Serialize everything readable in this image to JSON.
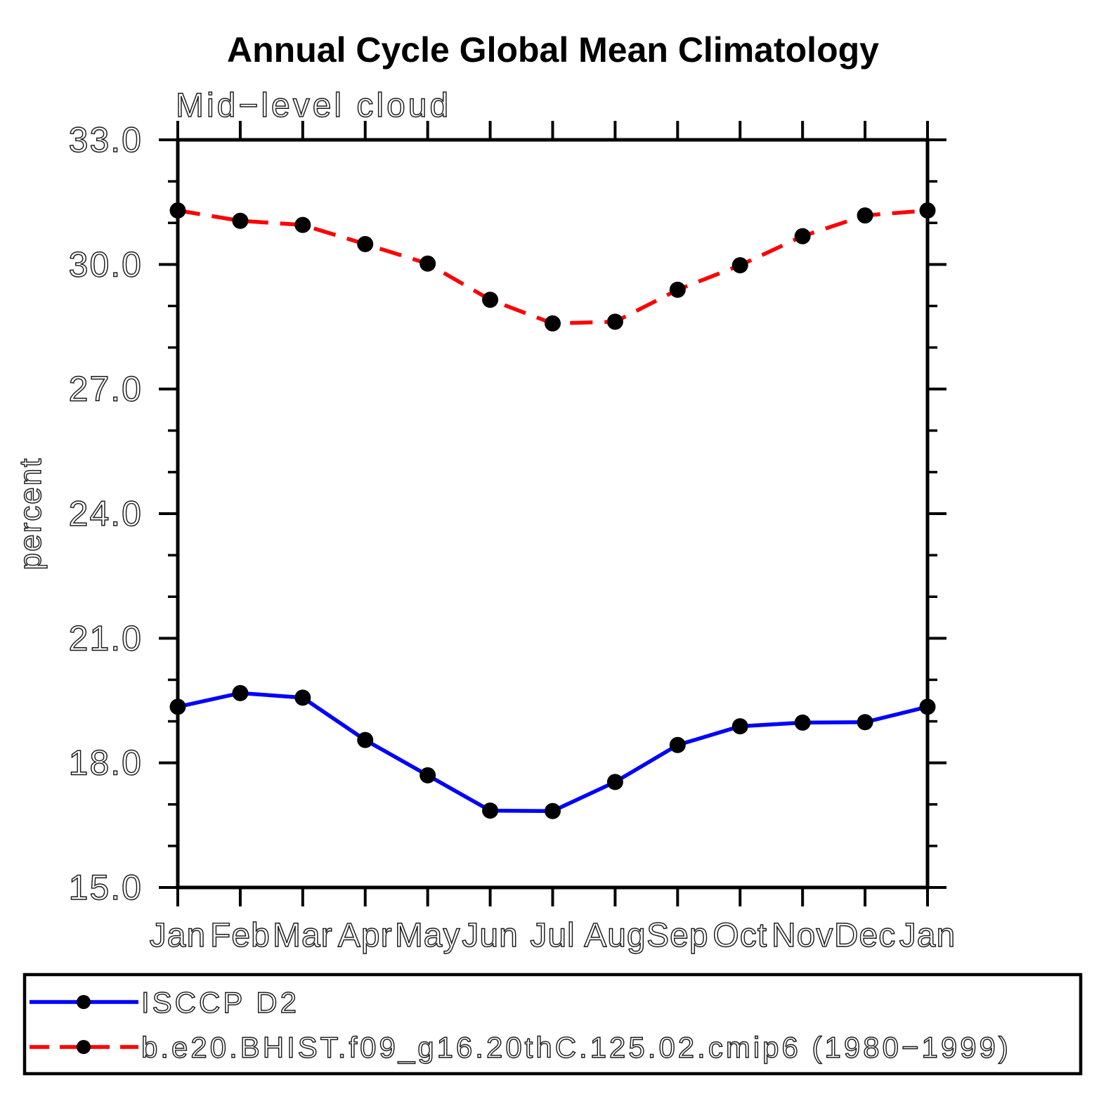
{
  "title": "Annual Cycle Global Mean Climatology",
  "chart_data": {
    "type": "line",
    "title": "Annual Cycle Global Mean Climatology",
    "subtitle": "Mid−level cloud",
    "xlabel": "",
    "ylabel": "percent",
    "ylim": [
      15.0,
      33.0
    ],
    "ytick_labels": [
      "33.0",
      "30.0",
      "27.0",
      "24.0",
      "21.0",
      "18.0",
      "15.0"
    ],
    "ytick_values": [
      33.0,
      30.0,
      27.0,
      24.0,
      21.0,
      18.0,
      15.0
    ],
    "ytick_minor_step": 1.0,
    "categories": [
      "Jan",
      "Feb",
      "Mar",
      "Apr",
      "May",
      "Jun",
      "Jul",
      "Aug",
      "Sep",
      "Oct",
      "Nov",
      "Dec",
      "Jan"
    ],
    "grid": false,
    "legend_position": "bottom",
    "axis_color": "#000000",
    "marker_color": "#000000",
    "series": [
      {
        "name": "ISCCP D2",
        "color": "#0000ff",
        "line_style": "solid",
        "marker": "filled-circle",
        "values": [
          19.35,
          19.68,
          19.57,
          18.55,
          17.7,
          16.85,
          16.84,
          17.54,
          18.43,
          18.88,
          18.97,
          18.98,
          19.35
        ]
      },
      {
        "name": "b.e20.BHIST.f09_g16.20thC.125.02.cmip6 (1980−1999)",
        "color": "#ff0000",
        "line_style": "dashed",
        "marker": "filled-circle",
        "values": [
          31.3,
          31.05,
          30.95,
          30.49,
          30.02,
          29.15,
          28.58,
          28.62,
          29.39,
          29.98,
          30.68,
          31.18,
          31.3
        ]
      }
    ]
  }
}
